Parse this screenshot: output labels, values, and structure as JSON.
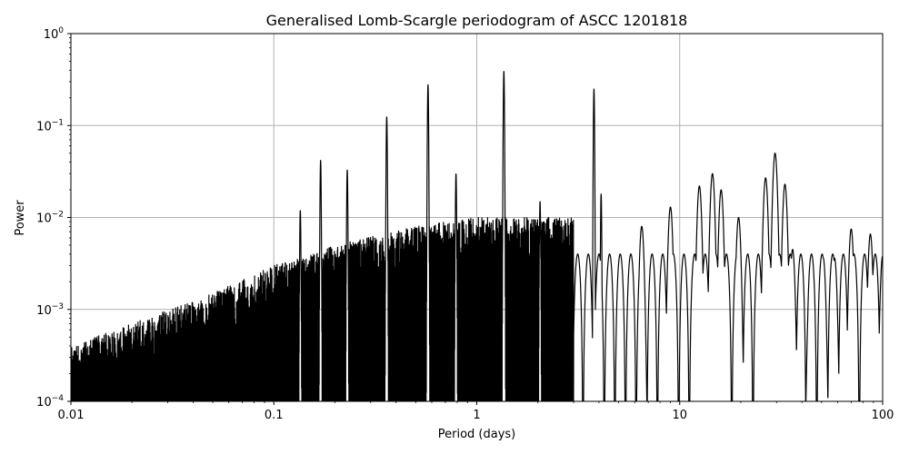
{
  "chart_data": {
    "type": "line",
    "title": "Generalised Lomb-Scargle periodogram of ASCC 1201818",
    "xlabel": "Period (days)",
    "ylabel": "Power",
    "xscale": "log",
    "yscale": "log",
    "xlim": [
      0.01,
      100
    ],
    "ylim": [
      0.0001,
      1
    ],
    "grid": true,
    "legend": null,
    "x_ticks": [
      {
        "value": 0.01,
        "label": "0.01"
      },
      {
        "value": 0.1,
        "label": "0.1"
      },
      {
        "value": 1,
        "label": "1"
      },
      {
        "value": 10,
        "label": "10"
      },
      {
        "value": 100,
        "label": "100"
      }
    ],
    "y_ticks": [
      {
        "value": 0.0001,
        "base": "10",
        "exp": "−4"
      },
      {
        "value": 0.001,
        "base": "10",
        "exp": "−3"
      },
      {
        "value": 0.01,
        "base": "10",
        "exp": "−2"
      },
      {
        "value": 0.1,
        "base": "10",
        "exp": "−1"
      },
      {
        "value": 1,
        "base": "10",
        "exp": "0"
      }
    ],
    "line_color": "#000000",
    "grid_color": "#b0b0b0",
    "noise_envelope": [
      {
        "period": 0.01,
        "power": 0.0004
      },
      {
        "period": 0.02,
        "power": 0.0007
      },
      {
        "period": 0.05,
        "power": 0.0015
      },
      {
        "period": 0.1,
        "power": 0.003
      },
      {
        "period": 0.2,
        "power": 0.005
      },
      {
        "period": 0.5,
        "power": 0.008
      },
      {
        "period": 1.0,
        "power": 0.01
      },
      {
        "period": 3.0,
        "power": 0.01
      }
    ],
    "peaks": [
      {
        "period": 0.135,
        "power": 0.012
      },
      {
        "period": 0.17,
        "power": 0.042
      },
      {
        "period": 0.23,
        "power": 0.033
      },
      {
        "period": 0.36,
        "power": 0.125
      },
      {
        "period": 0.575,
        "power": 0.28
      },
      {
        "period": 0.79,
        "power": 0.03
      },
      {
        "period": 1.36,
        "power": 0.39
      },
      {
        "period": 2.05,
        "power": 0.015
      },
      {
        "period": 3.78,
        "power": 0.25
      },
      {
        "period": 4.1,
        "power": 0.018
      },
      {
        "period": 6.5,
        "power": 0.008
      },
      {
        "period": 9.0,
        "power": 0.013
      },
      {
        "period": 12.5,
        "power": 0.022
      },
      {
        "period": 14.5,
        "power": 0.03
      },
      {
        "period": 16.0,
        "power": 0.02
      },
      {
        "period": 19.5,
        "power": 0.01
      },
      {
        "period": 26.5,
        "power": 0.027
      },
      {
        "period": 29.5,
        "power": 0.05
      },
      {
        "period": 33.0,
        "power": 0.023
      },
      {
        "period": 36.0,
        "power": 0.0045
      },
      {
        "period": 39.0,
        "power": 0.0013
      },
      {
        "period": 44.0,
        "power": 0.0024
      },
      {
        "period": 51.0,
        "power": 0.0036
      },
      {
        "period": 58.0,
        "power": 0.0036
      },
      {
        "period": 70.0,
        "power": 0.0075
      },
      {
        "period": 87.0,
        "power": 0.0066
      },
      {
        "period": 100.0,
        "power": 0.0038
      }
    ]
  }
}
